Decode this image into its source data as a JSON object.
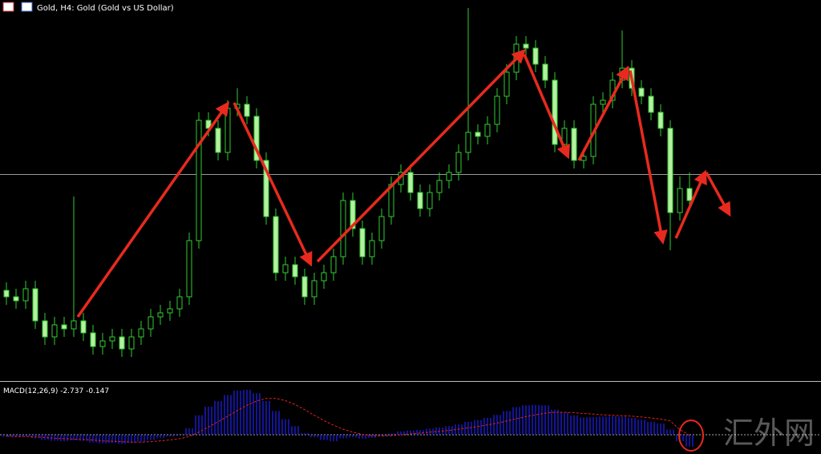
{
  "header": {
    "title": "Gold, H4:  Gold (Gold vs US Dollar)"
  },
  "watermark": "汇外网",
  "chart_data": [
    {
      "type": "candlestick",
      "up_color": "#000000",
      "down_color": "#b4f0a0",
      "wick_color": "#32cd32",
      "ylim": [
        0,
        454
      ],
      "open": [
        110,
        102,
        97,
        112,
        72,
        52,
        67,
        62,
        72,
        57,
        40,
        47,
        52,
        37,
        52,
        62,
        77,
        82,
        87,
        102,
        172,
        322,
        312,
        282,
        337,
        342,
        327,
        272,
        202,
        132,
        142,
        127,
        102,
        122,
        132,
        152,
        222,
        187,
        152,
        172,
        202,
        242,
        257,
        232,
        212,
        232,
        247,
        257,
        282,
        307,
        302,
        317,
        352,
        382,
        417,
        412,
        392,
        372,
        292,
        312,
        272,
        277,
        342,
        347,
        372,
        387,
        362,
        352,
        332,
        312,
        207,
        237
      ],
      "high": [
        120,
        112,
        122,
        122,
        82,
        77,
        77,
        227,
        82,
        67,
        57,
        62,
        62,
        62,
        72,
        87,
        92,
        97,
        112,
        182,
        332,
        332,
        322,
        347,
        362,
        352,
        337,
        282,
        212,
        152,
        152,
        137,
        132,
        142,
        162,
        232,
        232,
        197,
        182,
        212,
        252,
        267,
        267,
        242,
        242,
        257,
        267,
        292,
        462,
        317,
        327,
        362,
        392,
        427,
        427,
        422,
        402,
        382,
        322,
        322,
        287,
        352,
        357,
        382,
        434,
        397,
        372,
        362,
        342,
        322,
        252,
        257
      ],
      "low": [
        92,
        87,
        87,
        62,
        42,
        42,
        52,
        52,
        47,
        30,
        30,
        37,
        27,
        27,
        42,
        52,
        67,
        72,
        77,
        92,
        162,
        302,
        272,
        272,
        327,
        317,
        262,
        192,
        122,
        122,
        117,
        92,
        92,
        112,
        122,
        142,
        177,
        142,
        142,
        162,
        192,
        232,
        222,
        202,
        202,
        222,
        237,
        247,
        272,
        292,
        292,
        307,
        342,
        372,
        402,
        382,
        362,
        282,
        282,
        262,
        262,
        267,
        332,
        337,
        362,
        352,
        342,
        322,
        302,
        160,
        197,
        212
      ],
      "close": [
        102,
        97,
        112,
        72,
        52,
        67,
        62,
        72,
        57,
        40,
        47,
        52,
        37,
        52,
        62,
        77,
        82,
        87,
        102,
        172,
        322,
        312,
        282,
        337,
        342,
        327,
        272,
        202,
        132,
        142,
        127,
        102,
        122,
        132,
        152,
        222,
        187,
        152,
        172,
        202,
        242,
        257,
        232,
        212,
        232,
        247,
        257,
        282,
        307,
        302,
        317,
        352,
        382,
        417,
        412,
        392,
        372,
        292,
        312,
        272,
        277,
        342,
        347,
        372,
        387,
        362,
        352,
        332,
        312,
        207,
        237,
        222
      ]
    },
    {
      "type": "macd",
      "label": "MACD(12,26,9) -2.737 -0.147",
      "hist_color": "#1e1ee6",
      "signal_color": "#e02020",
      "ylim": [
        -3.7,
        11.5
      ],
      "macd": [
        -0.5,
        -0.6,
        -0.4,
        -0.8,
        -1.2,
        -1.4,
        -1.5,
        -1.3,
        -1.4,
        -1.8,
        -2.0,
        -1.9,
        -2.1,
        -1.9,
        -1.6,
        -1.2,
        -0.8,
        -0.4,
        0.2,
        1.5,
        4.5,
        6.5,
        7.8,
        9.2,
        10.2,
        10.4,
        9.6,
        7.8,
        5.5,
        3.6,
        2.0,
        0.4,
        -0.6,
        -1.2,
        -1.5,
        -0.8,
        -0.6,
        -0.9,
        -0.7,
        -0.3,
        0.3,
        0.8,
        1.0,
        1.1,
        1.4,
        1.7,
        2.0,
        2.4,
        3.0,
        3.4,
        3.9,
        4.6,
        5.5,
        6.4,
        6.8,
        6.9,
        6.8,
        5.8,
        5.2,
        4.5,
        4.0,
        4.1,
        4.2,
        4.3,
        4.2,
        3.9,
        3.5,
        3.0,
        2.6,
        1.2,
        -1.5,
        -2.737
      ],
      "signal": [
        -0.3,
        -0.4,
        -0.4,
        -0.5,
        -0.6,
        -0.8,
        -0.9,
        -1.0,
        -1.1,
        -1.2,
        -1.4,
        -1.5,
        -1.6,
        -1.7,
        -1.7,
        -1.6,
        -1.4,
        -1.2,
        -0.9,
        -0.4,
        0.6,
        1.8,
        3.0,
        4.3,
        5.6,
        6.8,
        7.8,
        8.4,
        8.4,
        7.9,
        7.0,
        5.8,
        4.5,
        3.3,
        2.2,
        1.3,
        0.6,
        0.1,
        -0.2,
        -0.3,
        -0.2,
        0.0,
        0.2,
        0.4,
        0.6,
        0.8,
        1.0,
        1.3,
        1.6,
        1.9,
        2.3,
        2.7,
        3.2,
        3.7,
        4.2,
        4.6,
        5.0,
        5.2,
        5.2,
        5.1,
        4.9,
        4.8,
        4.6,
        4.5,
        4.4,
        4.3,
        4.1,
        3.9,
        3.6,
        3.2,
        1.2,
        -0.147
      ]
    }
  ]
}
